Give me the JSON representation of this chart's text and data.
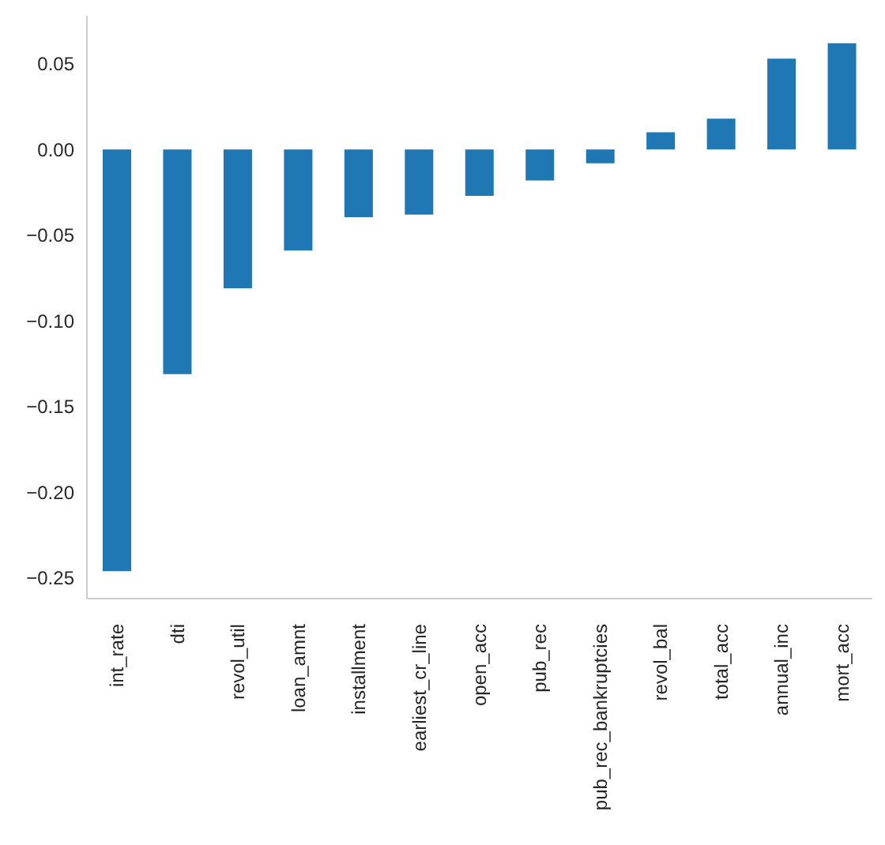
{
  "chart_data": {
    "type": "bar",
    "categories": [
      "int_rate",
      "dti",
      "revol_util",
      "loan_amnt",
      "installment",
      "earliest_cr_line",
      "open_acc",
      "pub_rec",
      "pub_rec_bankruptcies",
      "revol_bal",
      "total_acc",
      "annual_inc",
      "mort_acc"
    ],
    "values": [
      -0.246,
      -0.131,
      -0.081,
      -0.059,
      -0.0395,
      -0.038,
      -0.027,
      -0.018,
      -0.008,
      0.01,
      0.018,
      0.053,
      0.062
    ],
    "color": "#1f77b4",
    "ylim": [
      -0.262,
      0.078
    ],
    "yticks": [
      {
        "value": -0.25,
        "label": "−0.25"
      },
      {
        "value": -0.2,
        "label": "−0.20"
      },
      {
        "value": -0.15,
        "label": "−0.15"
      },
      {
        "value": -0.1,
        "label": "−0.10"
      },
      {
        "value": -0.05,
        "label": "−0.05"
      },
      {
        "value": 0,
        "label": "0.00"
      },
      {
        "value": 0.05,
        "label": "0.05"
      }
    ],
    "grid": false,
    "legend": false
  }
}
